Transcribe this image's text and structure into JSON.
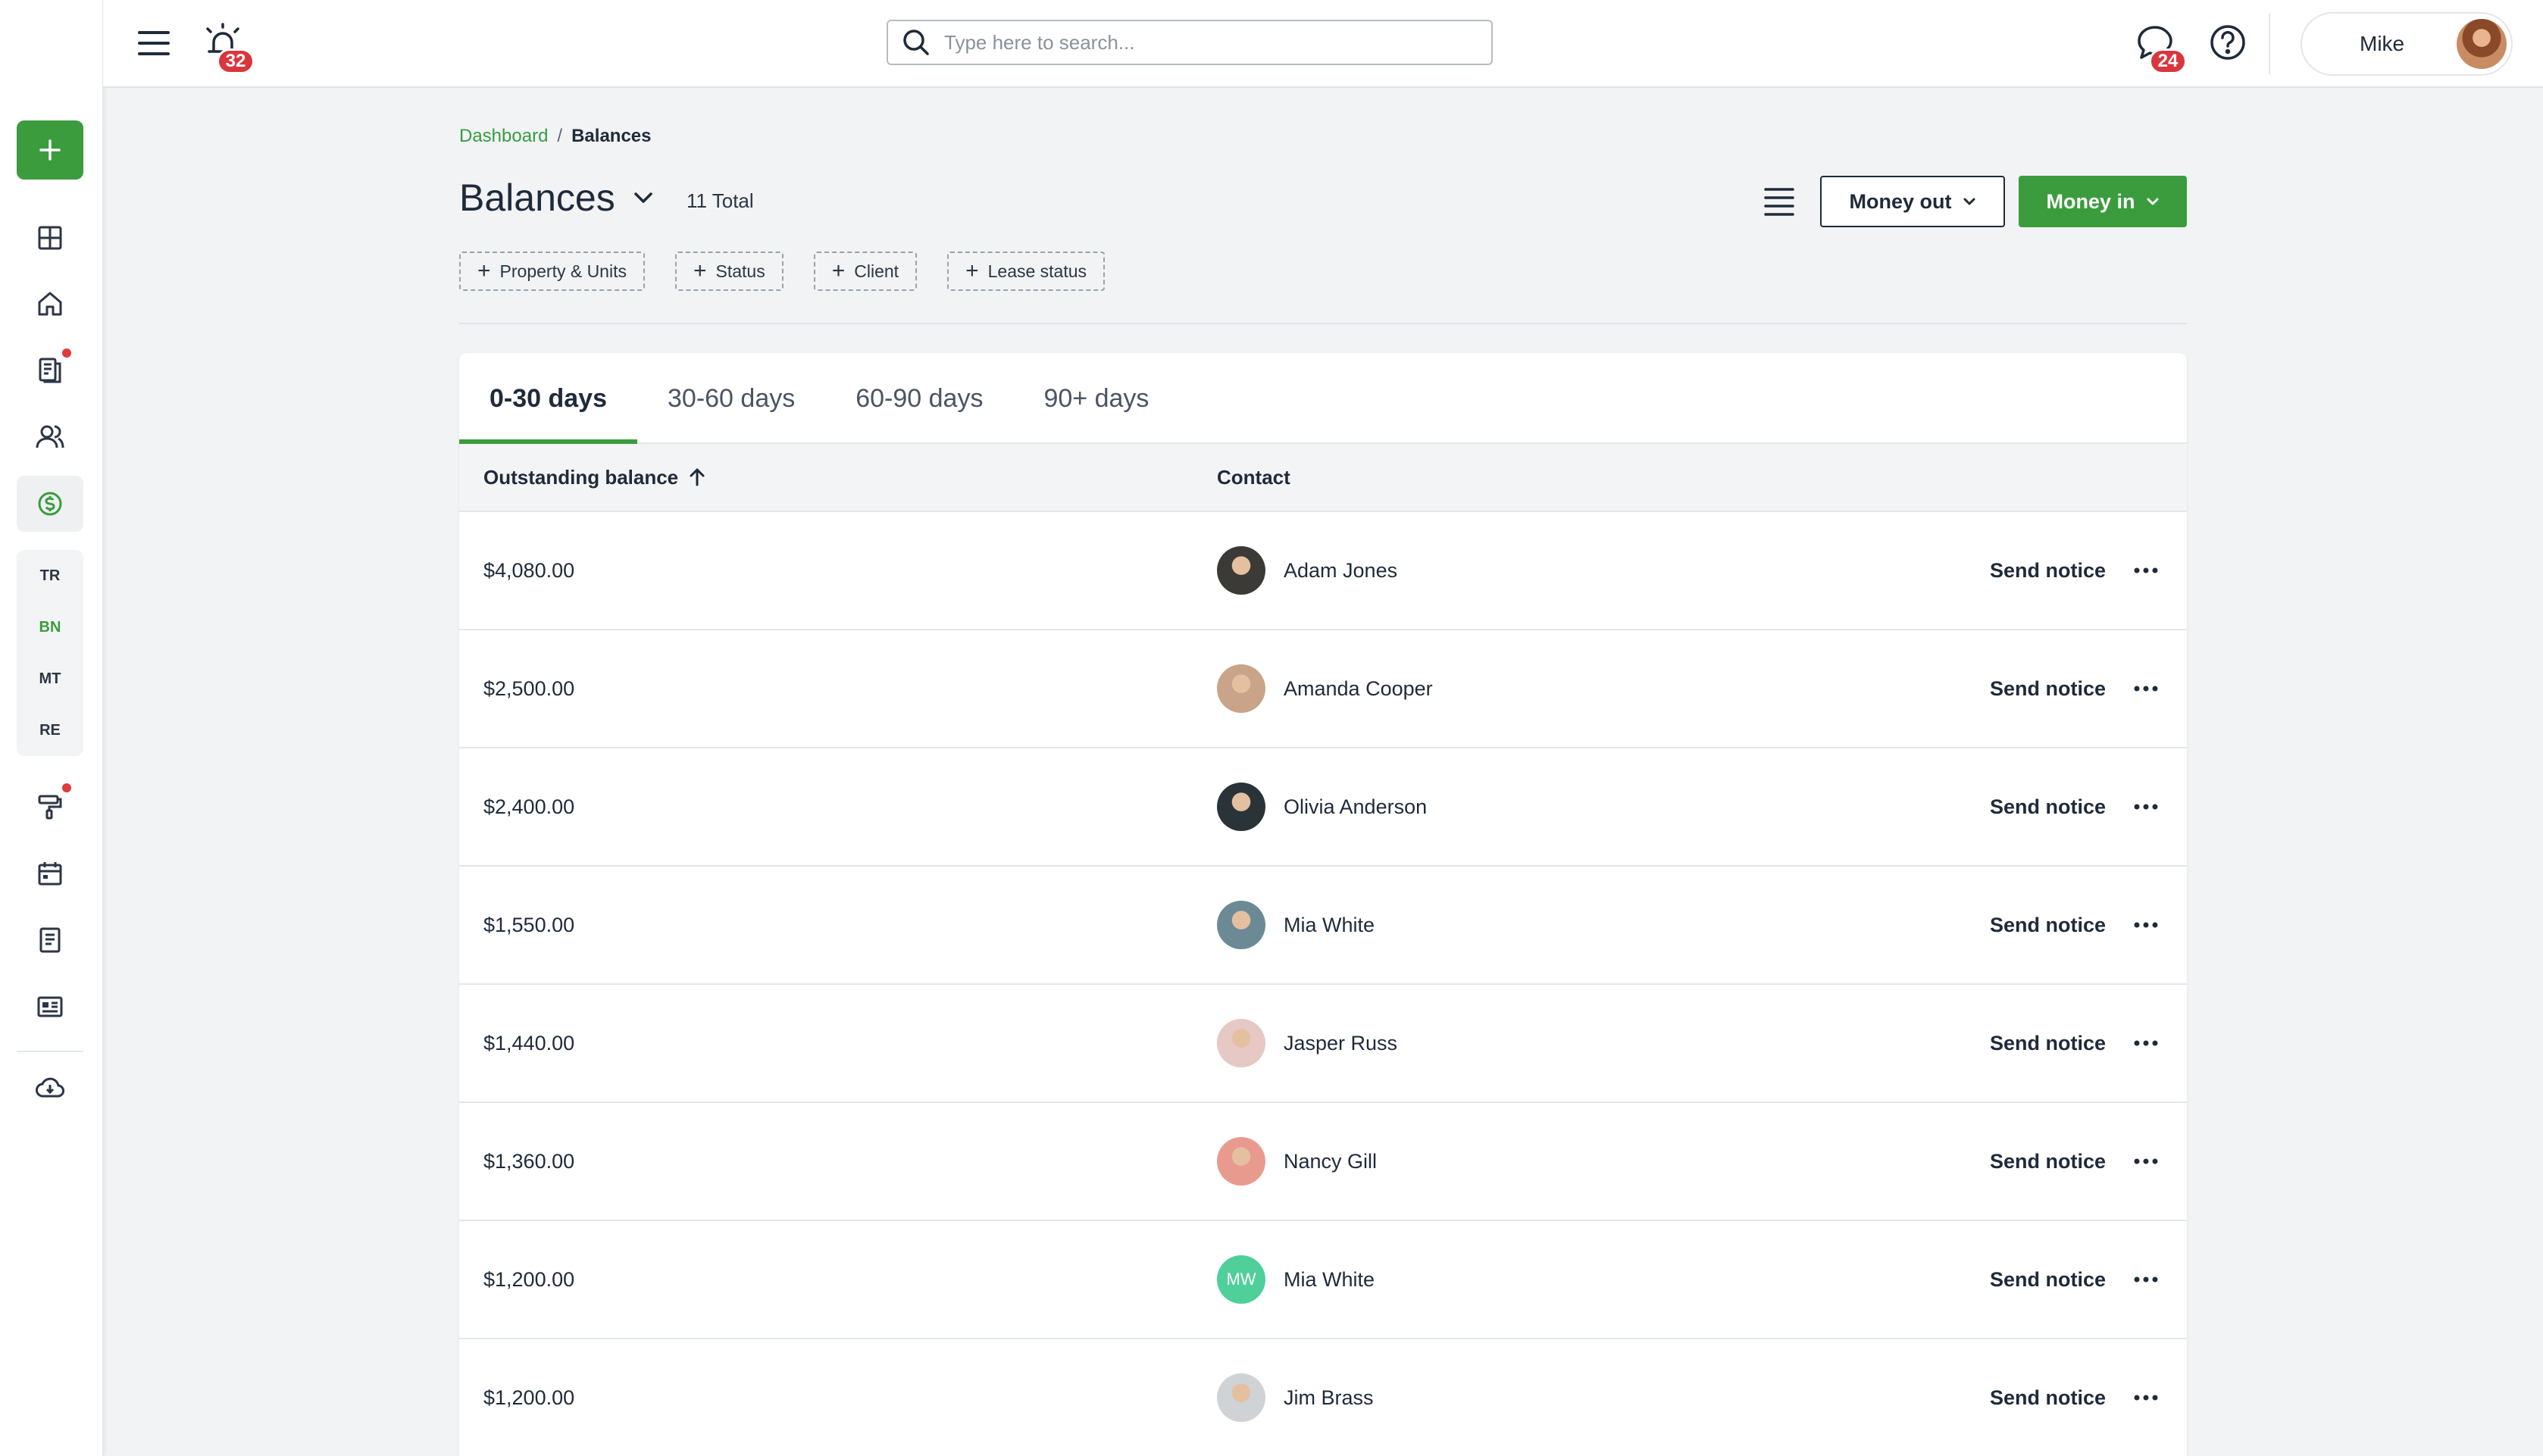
{
  "sidebar": {
    "add_icon": "plus-icon",
    "icons": [
      "dashboard-icon",
      "home-icon",
      "documents-icon",
      "people-icon",
      "dollar-icon",
      "paint-roller-icon",
      "calendar-icon",
      "notes-icon",
      "id-card-icon",
      "cloud-download-icon"
    ],
    "sub_items": [
      {
        "label": "TR",
        "active": false
      },
      {
        "label": "BN",
        "active": true
      },
      {
        "label": "MT",
        "active": false
      },
      {
        "label": "RE",
        "active": false
      }
    ],
    "accent_color": "#3a9c3d",
    "notification_dot_color": "#e03a3a"
  },
  "topbar": {
    "alerts_count": "32",
    "messages_count": "24",
    "search_placeholder": "Type here to search...",
    "user_name": "Mike"
  },
  "breadcrumb": {
    "parent": "Dashboard",
    "separator": "/",
    "current": "Balances"
  },
  "page": {
    "title": "Balances",
    "total": "11 Total",
    "money_out_label": "Money out",
    "money_in_label": "Money in"
  },
  "filters": [
    "Property & Units",
    "Status",
    "Client",
    "Lease status"
  ],
  "tabs": [
    {
      "label": "0-30 days",
      "active": true
    },
    {
      "label": "30-60 days",
      "active": false
    },
    {
      "label": "60-90 days",
      "active": false
    },
    {
      "label": "90+ days",
      "active": false
    }
  ],
  "table": {
    "headers": {
      "balance": "Outstanding balance",
      "contact": "Contact"
    },
    "action_label": "Send notice",
    "rows": [
      {
        "balance": "$4,080.00",
        "contact": "Adam Jones",
        "avatar_initials": "",
        "avatar_color": "#3b3a36"
      },
      {
        "balance": "$2,500.00",
        "contact": "Amanda Cooper",
        "avatar_initials": "",
        "avatar_color": "#c9a488"
      },
      {
        "balance": "$2,400.00",
        "contact": "Olivia Anderson",
        "avatar_initials": "",
        "avatar_color": "#2a3438"
      },
      {
        "balance": "$1,550.00",
        "contact": "Mia White",
        "avatar_initials": "",
        "avatar_color": "#6b8a96"
      },
      {
        "balance": "$1,440.00",
        "contact": "Jasper Russ",
        "avatar_initials": "",
        "avatar_color": "#e6c8c4"
      },
      {
        "balance": "$1,360.00",
        "contact": "Nancy Gill",
        "avatar_initials": "",
        "avatar_color": "#e99a8e"
      },
      {
        "balance": "$1,200.00",
        "contact": "Mia White",
        "avatar_initials": "MW",
        "avatar_color": "#4fcf9a"
      },
      {
        "balance": "$1,200.00",
        "contact": "Jim Brass",
        "avatar_initials": "",
        "avatar_color": "#cfd3d6"
      }
    ]
  }
}
